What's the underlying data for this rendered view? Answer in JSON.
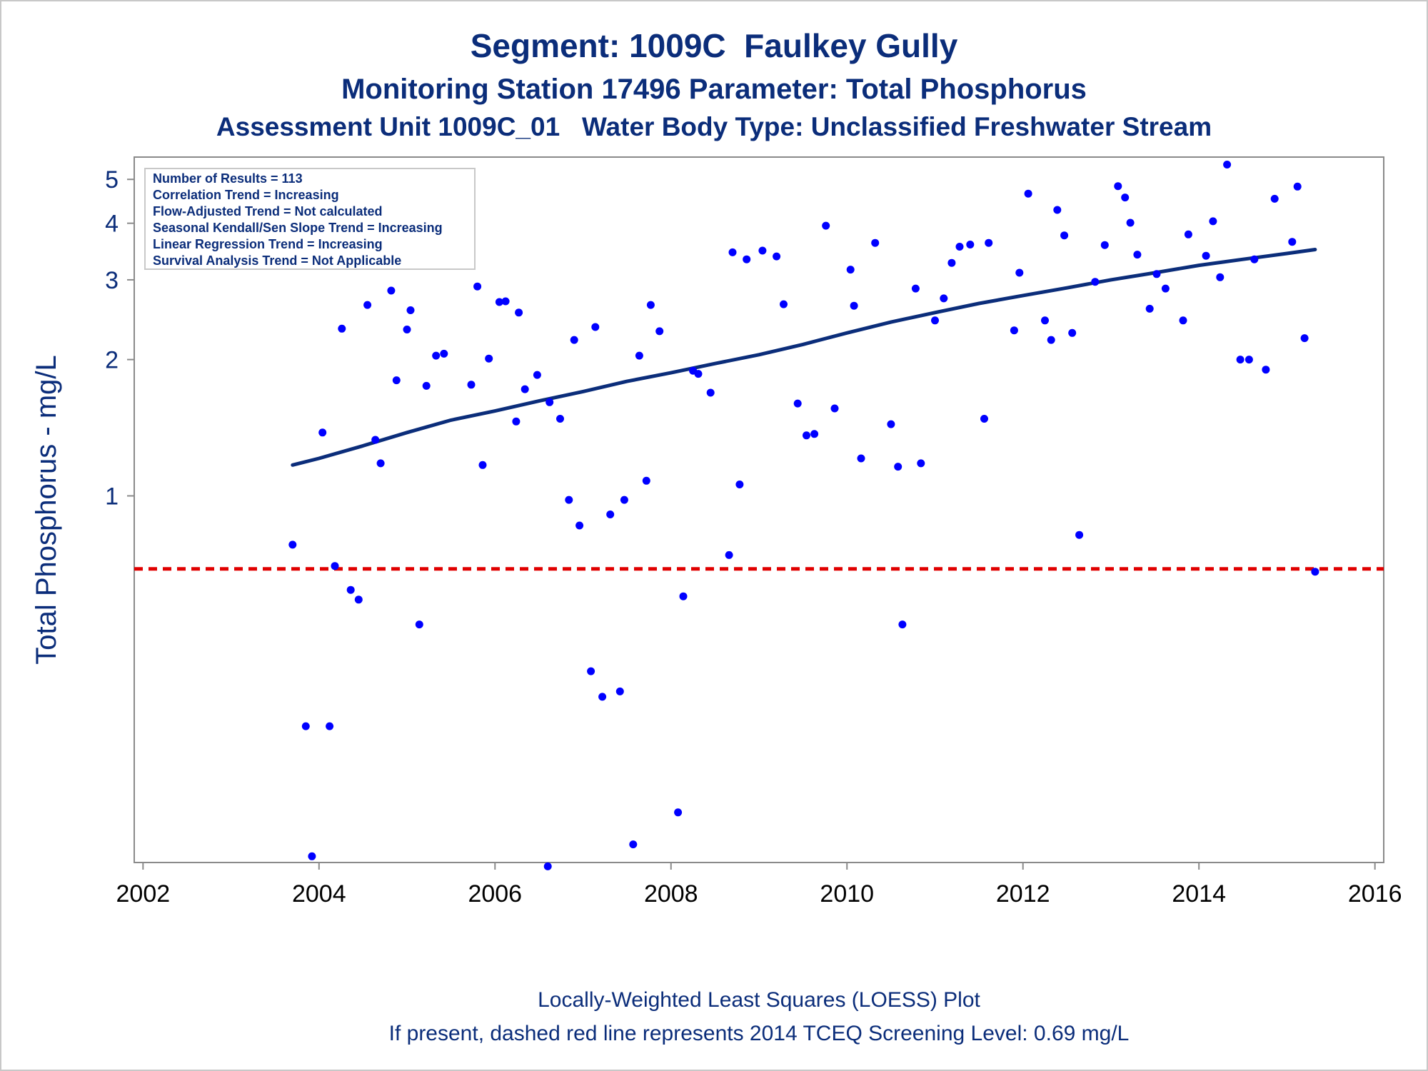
{
  "chart_data": {
    "type": "scatter",
    "title": "Segment: 1009C  Faulkey Gully",
    "subtitle": "Monitoring Station 17496 Parameter: Total Phosphorus",
    "subtitle2": "Assessment Unit 1009C_01   Water Body Type: Unclassified Freshwater Stream",
    "ylabel": "Total Phosphorus - mg/L",
    "xlabel": "",
    "footnote1": "Locally-Weighted Least Squares (LOESS) Plot",
    "footnote2": "If present, dashed red line represents 2014 TCEQ Screening Level: 0.69 mg/L",
    "x_axis": {
      "type": "time",
      "range": [
        2001.9,
        2016.1
      ],
      "ticks": [
        2002,
        2004,
        2006,
        2008,
        2010,
        2012,
        2014,
        2016
      ]
    },
    "y_axis": {
      "scale": "log",
      "range": [
        0.155,
        5.6
      ],
      "ticks": [
        1,
        2,
        3,
        4,
        5
      ]
    },
    "grid": false,
    "stats_box": {
      "placement": "top-left",
      "lines": [
        "Number of Results = 113",
        "Correlation Trend = Increasing",
        "Flow-Adjusted Trend = Not calculated",
        "Seasonal Kendall/Sen Slope Trend = Increasing",
        "Linear Regression Trend = Increasing",
        "Survival Analysis Trend = Not Applicable"
      ]
    },
    "screening_level": {
      "value": 0.69,
      "color": "#e00000",
      "style": "dashed"
    },
    "series": [
      {
        "kind": "points",
        "color": "#0000ff",
        "points": [
          [
            2003.7,
            0.78
          ],
          [
            2003.85,
            0.31
          ],
          [
            2003.92,
            0.16
          ],
          [
            2004.04,
            1.38
          ],
          [
            2004.12,
            0.31
          ],
          [
            2004.18,
            0.7
          ],
          [
            2004.26,
            2.34
          ],
          [
            2004.36,
            0.62
          ],
          [
            2004.45,
            0.59
          ],
          [
            2004.55,
            2.64
          ],
          [
            2004.64,
            1.33
          ],
          [
            2004.7,
            1.18
          ],
          [
            2004.82,
            2.84
          ],
          [
            2004.88,
            1.8
          ],
          [
            2005.0,
            2.33
          ],
          [
            2005.04,
            2.57
          ],
          [
            2005.14,
            0.52
          ],
          [
            2005.22,
            1.75
          ],
          [
            2005.33,
            2.04
          ],
          [
            2005.42,
            2.06
          ],
          [
            2005.73,
            1.76
          ],
          [
            2005.8,
            2.9
          ],
          [
            2005.86,
            1.17
          ],
          [
            2005.93,
            2.01
          ],
          [
            2006.05,
            2.68
          ],
          [
            2006.12,
            2.69
          ],
          [
            2006.24,
            1.46
          ],
          [
            2006.27,
            2.54
          ],
          [
            2006.34,
            1.72
          ],
          [
            2006.48,
            1.85
          ],
          [
            2006.6,
            0.152
          ],
          [
            2006.62,
            1.61
          ],
          [
            2006.74,
            1.48
          ],
          [
            2006.84,
            0.98
          ],
          [
            2006.9,
            2.21
          ],
          [
            2006.96,
            0.86
          ],
          [
            2007.09,
            0.41
          ],
          [
            2007.14,
            2.36
          ],
          [
            2007.22,
            0.36
          ],
          [
            2007.31,
            0.91
          ],
          [
            2007.42,
            0.37
          ],
          [
            2007.47,
            0.98
          ],
          [
            2007.57,
            0.17
          ],
          [
            2007.64,
            2.04
          ],
          [
            2007.72,
            1.08
          ],
          [
            2007.77,
            2.64
          ],
          [
            2007.87,
            2.31
          ],
          [
            2008.08,
            0.2
          ],
          [
            2008.14,
            0.6
          ],
          [
            2008.25,
            1.89
          ],
          [
            2008.31,
            1.86
          ],
          [
            2008.45,
            1.69
          ],
          [
            2008.66,
            0.74
          ],
          [
            2008.7,
            3.45
          ],
          [
            2008.78,
            1.06
          ],
          [
            2008.86,
            3.33
          ],
          [
            2009.04,
            3.48
          ],
          [
            2009.2,
            3.38
          ],
          [
            2009.28,
            2.65
          ],
          [
            2009.44,
            1.6
          ],
          [
            2009.54,
            1.36
          ],
          [
            2009.63,
            1.37
          ],
          [
            2009.76,
            3.95
          ],
          [
            2009.86,
            1.56
          ],
          [
            2010.04,
            3.16
          ],
          [
            2010.08,
            2.63
          ],
          [
            2010.16,
            1.21
          ],
          [
            2010.32,
            3.62
          ],
          [
            2010.5,
            1.44
          ],
          [
            2010.58,
            1.16
          ],
          [
            2010.63,
            0.52
          ],
          [
            2010.78,
            2.87
          ],
          [
            2010.84,
            1.18
          ],
          [
            2011.0,
            2.44
          ],
          [
            2011.1,
            2.73
          ],
          [
            2011.19,
            3.27
          ],
          [
            2011.28,
            3.55
          ],
          [
            2011.4,
            3.59
          ],
          [
            2011.56,
            1.48
          ],
          [
            2011.61,
            3.62
          ],
          [
            2011.9,
            2.32
          ],
          [
            2011.96,
            3.11
          ],
          [
            2012.06,
            4.65
          ],
          [
            2012.25,
            2.44
          ],
          [
            2012.32,
            2.21
          ],
          [
            2012.39,
            4.28
          ],
          [
            2012.47,
            3.76
          ],
          [
            2012.56,
            2.29
          ],
          [
            2012.64,
            0.82
          ],
          [
            2012.82,
            2.97
          ],
          [
            2012.93,
            3.58
          ],
          [
            2013.08,
            4.83
          ],
          [
            2013.16,
            4.56
          ],
          [
            2013.22,
            4.01
          ],
          [
            2013.3,
            3.41
          ],
          [
            2013.44,
            2.59
          ],
          [
            2013.52,
            3.09
          ],
          [
            2013.62,
            2.87
          ],
          [
            2013.82,
            2.44
          ],
          [
            2013.88,
            3.78
          ],
          [
            2014.08,
            3.39
          ],
          [
            2014.16,
            4.04
          ],
          [
            2014.24,
            3.04
          ],
          [
            2014.32,
            5.39
          ],
          [
            2014.47,
            2.0
          ],
          [
            2014.57,
            2.0
          ],
          [
            2014.63,
            3.33
          ],
          [
            2014.76,
            1.9
          ],
          [
            2014.86,
            4.53
          ],
          [
            2015.06,
            3.64
          ],
          [
            2015.12,
            4.82
          ],
          [
            2015.2,
            2.23
          ],
          [
            2015.32,
            0.68
          ]
        ]
      },
      {
        "kind": "line",
        "color": "#0b2d7a",
        "points": [
          [
            2003.7,
            1.17
          ],
          [
            2004.0,
            1.21
          ],
          [
            2004.5,
            1.29
          ],
          [
            2005.0,
            1.38
          ],
          [
            2005.5,
            1.47
          ],
          [
            2006.0,
            1.54
          ],
          [
            2006.5,
            1.62
          ],
          [
            2007.0,
            1.7
          ],
          [
            2007.5,
            1.79
          ],
          [
            2008.0,
            1.87
          ],
          [
            2008.5,
            1.96
          ],
          [
            2009.0,
            2.05
          ],
          [
            2009.5,
            2.16
          ],
          [
            2010.0,
            2.29
          ],
          [
            2010.5,
            2.42
          ],
          [
            2011.0,
            2.54
          ],
          [
            2011.5,
            2.66
          ],
          [
            2012.0,
            2.77
          ],
          [
            2012.5,
            2.88
          ],
          [
            2013.0,
            3.0
          ],
          [
            2013.5,
            3.11
          ],
          [
            2014.0,
            3.23
          ],
          [
            2014.5,
            3.33
          ],
          [
            2015.0,
            3.43
          ],
          [
            2015.32,
            3.5
          ]
        ]
      }
    ]
  }
}
